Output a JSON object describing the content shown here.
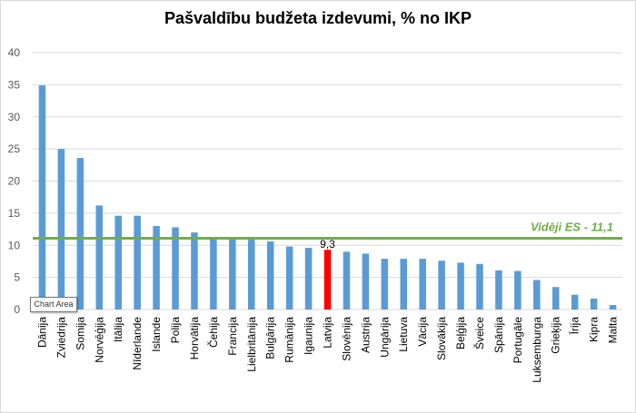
{
  "chart_data": {
    "type": "bar",
    "title": "Pašvaldību budžeta izdevumi, % no IKP",
    "categories": [
      "Dānija",
      "Zviedrija",
      "Somija",
      "Norvēģija",
      "Itālija",
      "Nīderlande",
      "Islande",
      "Polija",
      "Horvātija",
      "Čehija",
      "Francija",
      "Lielbritānija",
      "Bulgārija",
      "Rumānija",
      "Igaunija",
      "Latvija",
      "Slovēnija",
      "Austrija",
      "Ungārija",
      "Lietuva",
      "Vācija",
      "Slovākija",
      "Beļģija",
      "Šveice",
      "Spānija",
      "Portugāle",
      "Luksemburga",
      "Grieķija",
      "Īrija",
      "Kipra",
      "Malta"
    ],
    "values": [
      34.9,
      25.0,
      23.6,
      16.2,
      14.6,
      14.6,
      13.0,
      12.8,
      12.0,
      11.3,
      11.2,
      11.1,
      10.6,
      9.8,
      9.6,
      9.3,
      9.0,
      8.7,
      7.9,
      7.9,
      7.9,
      7.6,
      7.3,
      7.1,
      6.1,
      6.0,
      4.6,
      3.5,
      2.3,
      1.7,
      0.7
    ],
    "ylim": [
      0,
      40
    ],
    "yticks": [
      0,
      5,
      10,
      15,
      20,
      25,
      30,
      35,
      40
    ],
    "grid": true,
    "highlight": {
      "category": "Latvija",
      "label": "9,3",
      "color": "#ff0000"
    },
    "bar_color": "#5b9bd5",
    "reference_line": {
      "value": 11.1,
      "label": "Vidēji ES  - 11,1",
      "color": "#70ad47"
    }
  },
  "tooltip": {
    "text": "Chart Area"
  }
}
